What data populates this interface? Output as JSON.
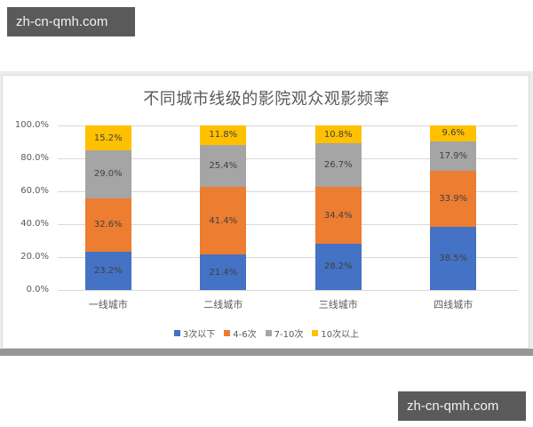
{
  "watermarks": {
    "top": "zh-cn-qmh.com",
    "bottom": "zh-cn-qmh.com"
  },
  "chart_data": {
    "type": "bar",
    "stacked": true,
    "title": "不同城市线级的影院观众观影频率",
    "xlabel": "",
    "ylabel": "",
    "ylim": [
      0,
      100
    ],
    "grid": true,
    "legend_position": "bottom",
    "yticks": [
      "0.0%",
      "20.0%",
      "40.0%",
      "60.0%",
      "80.0%",
      "100.0%"
    ],
    "categories": [
      "一线城市",
      "二线城市",
      "三线城市",
      "四线城市"
    ],
    "series": [
      {
        "name": "3次以下",
        "color": "#4472c4",
        "values": [
          23.2,
          21.4,
          28.2,
          38.5
        ],
        "labels": [
          "23.2%",
          "21.4%",
          "28.2%",
          "38.5%"
        ]
      },
      {
        "name": "4-6次",
        "color": "#ed7d31",
        "values": [
          32.6,
          41.4,
          34.4,
          33.9
        ],
        "labels": [
          "32.6%",
          "41.4%",
          "34.4%",
          "33.9%"
        ]
      },
      {
        "name": "7-10次",
        "color": "#a5a5a5",
        "values": [
          29.0,
          25.4,
          26.7,
          17.9
        ],
        "labels": [
          "29.0%",
          "25.4%",
          "26.7%",
          "17.9%"
        ]
      },
      {
        "name": "10次以上",
        "color": "#ffc000",
        "values": [
          15.2,
          11.8,
          10.8,
          9.6
        ],
        "labels": [
          "15.2%",
          "11.8%",
          "10.8%",
          "9.6%"
        ]
      }
    ]
  }
}
